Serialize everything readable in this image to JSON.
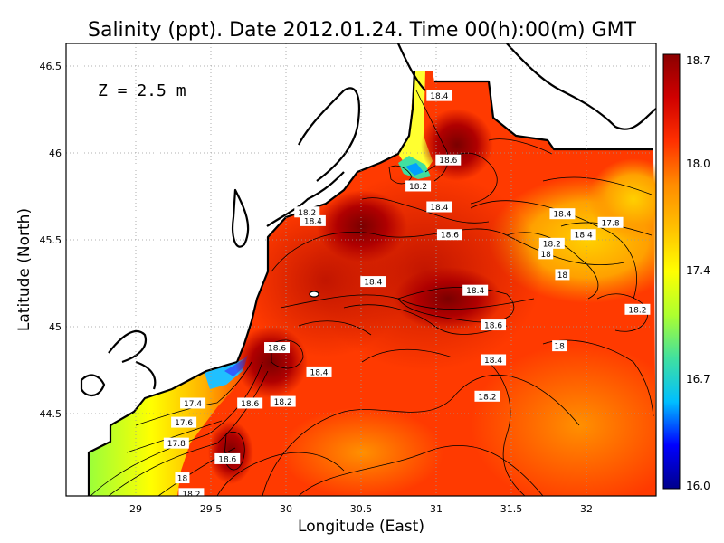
{
  "title": "Salinity (ppt). Date 2012.01.24. Time 00(h):00(m) GMT",
  "depth_label": "Z  =  2.5  m",
  "x_axis_label": "Longitude (East)",
  "y_axis_label": "Latitude (North)",
  "x_ticks": [
    "29",
    "29.5",
    "30",
    "30.5",
    "31",
    "31.5",
    "32"
  ],
  "y_ticks": [
    "44.5",
    "45",
    "45.5",
    "46",
    "46.5"
  ],
  "colorbar": {
    "ticks": [
      "16.0",
      "16.7",
      "17.4",
      "18.0",
      "18.7"
    ],
    "colors": [
      "#00008b",
      "#0000ff",
      "#00bfff",
      "#40e0a0",
      "#adff2f",
      "#ffff00",
      "#ffc000",
      "#ff8c00",
      "#ff3000",
      "#d00000",
      "#8b0000"
    ]
  },
  "contour_labels": [
    {
      "text": "18.4",
      "lon": 31.02,
      "lat": 46.33
    },
    {
      "text": "18.6",
      "lon": 31.08,
      "lat": 45.96
    },
    {
      "text": "18.2",
      "lon": 30.88,
      "lat": 45.81
    },
    {
      "text": "18.4",
      "lon": 31.02,
      "lat": 45.69
    },
    {
      "text": "18.2",
      "lon": 30.14,
      "lat": 45.66
    },
    {
      "text": "18.4",
      "lon": 30.18,
      "lat": 45.61
    },
    {
      "text": "18.4",
      "lon": 31.84,
      "lat": 45.65
    },
    {
      "text": "17.8",
      "lon": 32.16,
      "lat": 45.6
    },
    {
      "text": "18.6",
      "lon": 31.09,
      "lat": 45.53
    },
    {
      "text": "18.4",
      "lon": 31.98,
      "lat": 45.53
    },
    {
      "text": "18.2",
      "lon": 31.77,
      "lat": 45.48
    },
    {
      "text": "18",
      "lon": 31.73,
      "lat": 45.42
    },
    {
      "text": "18.4",
      "lon": 30.58,
      "lat": 45.26
    },
    {
      "text": "18",
      "lon": 31.84,
      "lat": 45.3
    },
    {
      "text": "18.4",
      "lon": 31.26,
      "lat": 45.21
    },
    {
      "text": "18.2",
      "lon": 32.34,
      "lat": 45.1
    },
    {
      "text": "18.6",
      "lon": 31.38,
      "lat": 45.01
    },
    {
      "text": "18.6",
      "lon": 29.94,
      "lat": 44.88
    },
    {
      "text": "18",
      "lon": 31.82,
      "lat": 44.89
    },
    {
      "text": "18.4",
      "lon": 31.38,
      "lat": 44.81
    },
    {
      "text": "18.4",
      "lon": 30.22,
      "lat": 44.74
    },
    {
      "text": "18.2",
      "lon": 31.34,
      "lat": 44.6
    },
    {
      "text": "17.4",
      "lon": 29.38,
      "lat": 44.56
    },
    {
      "text": "18.6",
      "lon": 29.76,
      "lat": 44.56
    },
    {
      "text": "18.2",
      "lon": 29.98,
      "lat": 44.57
    },
    {
      "text": "17.6",
      "lon": 29.32,
      "lat": 44.45
    },
    {
      "text": "17.8",
      "lon": 29.27,
      "lat": 44.33
    },
    {
      "text": "18.6",
      "lon": 29.61,
      "lat": 44.24
    },
    {
      "text": "18",
      "lon": 29.31,
      "lat": 44.13
    },
    {
      "text": "18.2",
      "lon": 29.37,
      "lat": 44.04
    }
  ]
}
